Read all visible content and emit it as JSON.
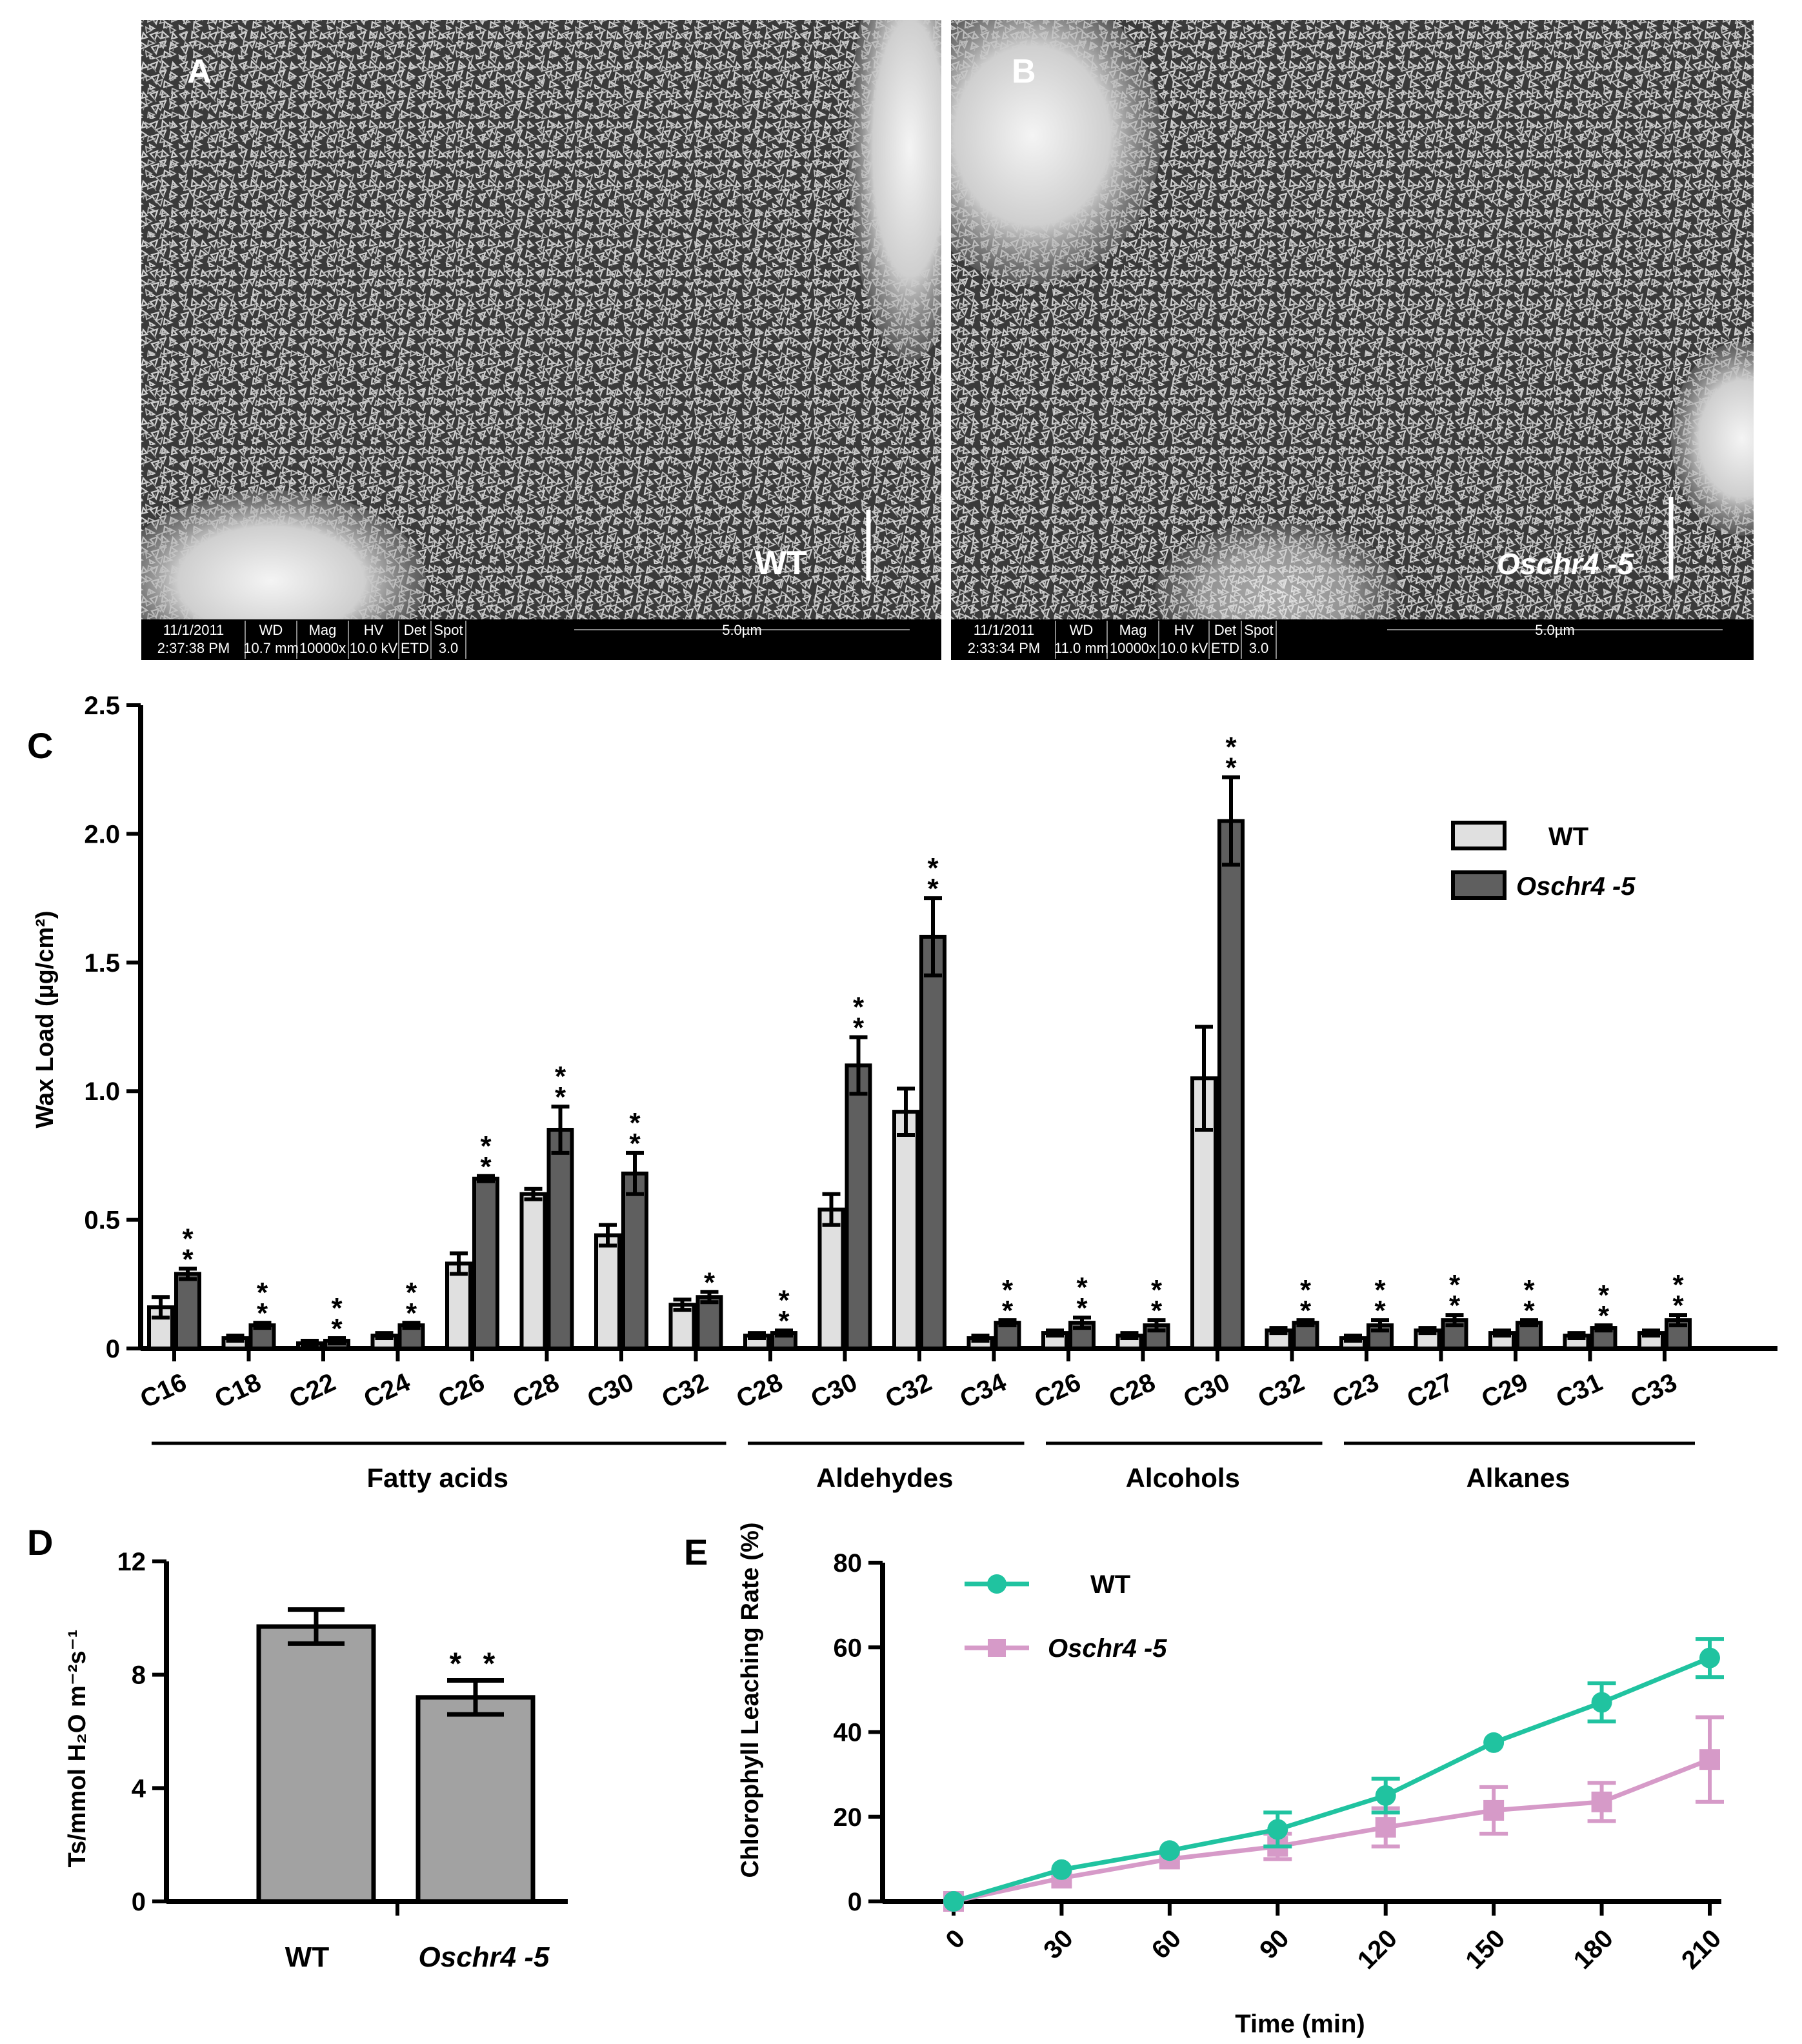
{
  "colors": {
    "wt_bar": "#e0e0e0",
    "mut_bar": "#5f5f5f",
    "bar_d": "#a2a2a2",
    "wt_line": "#20c3a0",
    "mut_line": "#d69ac8"
  },
  "panel_a": {
    "letter": "A",
    "label": "WT",
    "meta": {
      "date": "11/1/2011",
      "time": "2:37:38 PM",
      "wd_h": "WD",
      "wd": "10.7 mm",
      "mag_h": "Mag",
      "mag": "10000x",
      "hv_h": "HV",
      "hv": "10.0 kV",
      "det_h": "Det",
      "det": "ETD",
      "spot_h": "Spot",
      "spot": "3.0",
      "scale": "5.0µm"
    }
  },
  "panel_b": {
    "letter": "B",
    "label": "Oschr4 -5",
    "meta": {
      "date": "11/1/2011",
      "time": "2:33:34 PM",
      "wd_h": "WD",
      "wd": "11.0 mm",
      "mag_h": "Mag",
      "mag": "10000x",
      "hv_h": "HV",
      "hv": "10.0 kV",
      "det_h": "Det",
      "det": "ETD",
      "spot_h": "Spot",
      "spot": "3.0",
      "scale": "5.0µm"
    }
  },
  "chart_data": [
    {
      "panel": "C",
      "type": "bar",
      "ylabel": "Wax Load (µg/cm²)",
      "ylim": [
        0,
        2.5
      ],
      "yticks": [
        "0",
        "0.5",
        "1.0",
        "1.5",
        "2.0",
        "2.5"
      ],
      "legend": [
        "WT",
        "Oschr4 -5"
      ],
      "legend_position": "top-right",
      "categories": [
        "C16",
        "C18",
        "C22",
        "C24",
        "C26",
        "C28",
        "C30",
        "C32",
        "C28",
        "C30",
        "C32",
        "C34",
        "C26",
        "C28",
        "C30",
        "C32",
        "C23",
        "C27",
        "C29",
        "C31",
        "C33"
      ],
      "groups": [
        {
          "name": "Fatty acids",
          "start": 0,
          "end": 7
        },
        {
          "name": "Aldehydes",
          "start": 8,
          "end": 11
        },
        {
          "name": "Alcohols",
          "start": 12,
          "end": 15
        },
        {
          "name": "Alkanes",
          "start": 16,
          "end": 20
        }
      ],
      "series": [
        {
          "name": "WT",
          "values": [
            0.16,
            0.04,
            0.02,
            0.05,
            0.33,
            0.6,
            0.44,
            0.17,
            0.05,
            0.54,
            0.92,
            0.04,
            0.06,
            0.05,
            1.05,
            0.07,
            0.04,
            0.07,
            0.06,
            0.05,
            0.06
          ],
          "errors": [
            0.04,
            0.01,
            0.01,
            0.01,
            0.04,
            0.02,
            0.04,
            0.02,
            0.01,
            0.06,
            0.09,
            0.01,
            0.01,
            0.01,
            0.2,
            0.01,
            0.01,
            0.01,
            0.01,
            0.01,
            0.01
          ]
        },
        {
          "name": "Oschr4 -5",
          "values": [
            0.29,
            0.09,
            0.03,
            0.09,
            0.66,
            0.85,
            0.68,
            0.2,
            0.06,
            1.1,
            1.6,
            0.1,
            0.1,
            0.09,
            2.05,
            0.1,
            0.09,
            0.11,
            0.1,
            0.08,
            0.11
          ],
          "errors": [
            0.02,
            0.01,
            0.01,
            0.01,
            0.01,
            0.09,
            0.08,
            0.02,
            0.01,
            0.11,
            0.15,
            0.01,
            0.02,
            0.02,
            0.17,
            0.01,
            0.02,
            0.02,
            0.01,
            0.01,
            0.02
          ],
          "significance": [
            "**",
            "**",
            "**",
            "**",
            "**",
            "**",
            "**",
            "*",
            "**",
            "**",
            "**",
            "**",
            "**",
            "**",
            "**",
            "**",
            "**",
            "**",
            "**",
            "**",
            "**"
          ]
        }
      ]
    },
    {
      "panel": "D",
      "type": "bar",
      "ylabel": "Ts/mmol H₂O m⁻²s⁻¹",
      "ylim": [
        0,
        12
      ],
      "yticks": [
        "0",
        "4",
        "8",
        "12"
      ],
      "categories": [
        "WT",
        "Oschr4 -5"
      ],
      "values": [
        9.7,
        7.2
      ],
      "errors": [
        0.6,
        0.6
      ],
      "significance": [
        "",
        "**"
      ]
    },
    {
      "panel": "E",
      "type": "line",
      "xlabel": "Time (min)",
      "ylabel": "Chlorophyll Leaching Rate (%)",
      "ylim": [
        0,
        80
      ],
      "yticks": [
        "0",
        "20",
        "40",
        "60",
        "80"
      ],
      "x": [
        0,
        30,
        60,
        90,
        120,
        150,
        180,
        210
      ],
      "xticks": [
        "0",
        "30",
        "60",
        "90",
        "120",
        "150",
        "180",
        "210"
      ],
      "legend": [
        "WT",
        "Oschr4 -5"
      ],
      "legend_position": "top-left",
      "series": [
        {
          "name": "WT",
          "marker": "circle",
          "values": [
            0,
            7.5,
            12,
            17,
            25,
            37.5,
            47,
            57.5
          ],
          "errors": [
            0,
            0.5,
            0.5,
            4,
            4,
            0.5,
            4.5,
            4.5
          ]
        },
        {
          "name": "Oschr4 -5",
          "marker": "square",
          "values": [
            0,
            5.5,
            10,
            13,
            17.5,
            21.5,
            23.5,
            33.5
          ],
          "errors": [
            0,
            0.5,
            0.5,
            3,
            4.5,
            5.5,
            4.5,
            10
          ]
        }
      ]
    }
  ]
}
